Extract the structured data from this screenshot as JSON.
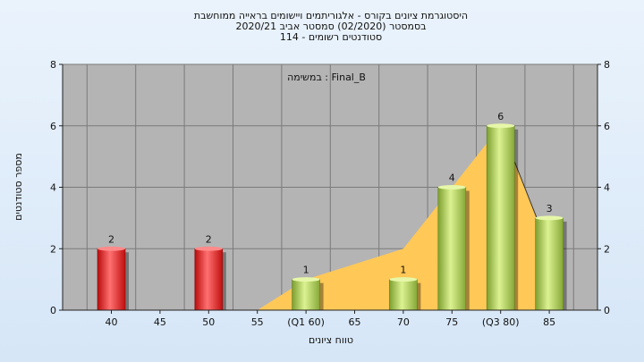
{
  "chart_data": {
    "type": "bar",
    "title_lines": [
      "היסטוגרמת ציונים בקורס - אלגוריתמים ויישומים בראייה ממוחשבת",
      "בסמסטר  (02/2020)  סמסטר אביב  2020/21",
      "סטודנטים רשומים - 114"
    ],
    "annotation": "במשימה : Final_B",
    "xlabel": "טווח ציונים",
    "ylabel": "מספר סטודנטים",
    "ylim": [
      0,
      8
    ],
    "yticks": [
      0,
      2,
      4,
      6,
      8
    ],
    "x_ticks": [
      {
        "x": 40,
        "label": "40"
      },
      {
        "x": 45,
        "label": "45"
      },
      {
        "x": 50,
        "label": "50"
      },
      {
        "x": 55,
        "label": "55"
      },
      {
        "x": 60,
        "label": "(Q1 60)"
      },
      {
        "x": 65,
        "label": "65"
      },
      {
        "x": 70,
        "label": "70"
      },
      {
        "x": 75,
        "label": "75"
      },
      {
        "x": 80,
        "label": "(Q3 80)"
      },
      {
        "x": 85,
        "label": "85"
      }
    ],
    "bars": [
      {
        "x": 40,
        "value": 2,
        "color": "red"
      },
      {
        "x": 50,
        "value": 2,
        "color": "red"
      },
      {
        "x": 60,
        "value": 1,
        "color": "green"
      },
      {
        "x": 70,
        "value": 1,
        "color": "green"
      },
      {
        "x": 75,
        "value": 4,
        "color": "green"
      },
      {
        "x": 80,
        "value": 6,
        "color": "green"
      },
      {
        "x": 85,
        "value": 3,
        "color": "green"
      }
    ],
    "area": [
      {
        "x": 55,
        "y": 0
      },
      {
        "x": 60,
        "y": 1
      },
      {
        "x": 70,
        "y": 2
      },
      {
        "x": 80,
        "y": 6
      },
      {
        "x": 85,
        "y": 2
      }
    ],
    "colors": {
      "plot_bg": "#b4b4b4",
      "grid": "#7a7a7a",
      "area": "#ffc857",
      "red_dark": "#c81010",
      "red_light": "#ff6a6a",
      "green_dark": "#7a9e2c",
      "green_light": "#d9f08a"
    }
  }
}
